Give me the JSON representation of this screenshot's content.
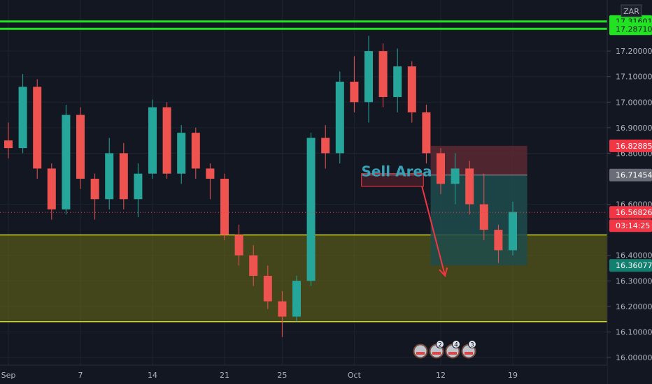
{
  "chart_data": {
    "type": "candlestick",
    "title": "",
    "symbol_currency": "ZAR",
    "ylim": [
      15.97,
      17.4
    ],
    "y_ticks": [
      {
        "value": 17.2,
        "label": "17.20000"
      },
      {
        "value": 17.1,
        "label": "17.10000"
      },
      {
        "value": 17.0,
        "label": "17.00000"
      },
      {
        "value": 16.9,
        "label": "16.90000"
      },
      {
        "value": 16.8,
        "label": "16.80000"
      },
      {
        "value": 16.6,
        "label": "16.60000"
      },
      {
        "value": 16.4,
        "label": "16.40000"
      },
      {
        "value": 16.3,
        "label": "16.30000"
      },
      {
        "value": 16.2,
        "label": "16.20000"
      },
      {
        "value": 16.1,
        "label": "16.10000"
      },
      {
        "value": 16.0,
        "label": "16.00000"
      }
    ],
    "x_ticks": [
      {
        "index": 0,
        "label": "Sep"
      },
      {
        "index": 5,
        "label": "7"
      },
      {
        "index": 10,
        "label": "14"
      },
      {
        "index": 15,
        "label": "21"
      },
      {
        "index": 19,
        "label": "25"
      },
      {
        "index": 24,
        "label": "Oct"
      },
      {
        "index": 30,
        "label": "12"
      },
      {
        "index": 35,
        "label": "19"
      }
    ],
    "price_tags": [
      {
        "value": 17.316,
        "label": "17.31601",
        "color": "#22e322",
        "text_color": "#131722"
      },
      {
        "value": 17.2871,
        "label": "17.28710",
        "color": "#22e322",
        "text_color": "#131722"
      },
      {
        "value": 16.82885,
        "label": "16.82885",
        "color": "#f23645",
        "text_color": "#ffffff"
      },
      {
        "value": 16.71454,
        "label": "16.71454",
        "color": "#6a6d78",
        "text_color": "#ffffff"
      },
      {
        "value": 16.56826,
        "label": "16.56826",
        "color": "#f23645",
        "text_color": "#ffffff"
      },
      {
        "value": 16.36077,
        "label": "16.36077",
        "color": "#12806f",
        "text_color": "#ffffff"
      }
    ],
    "countdown": {
      "label": "03:14:25",
      "color": "#f23645"
    },
    "last_price": 16.56826,
    "horizontal_lines": [
      {
        "value": 17.316,
        "color": "#22e322"
      },
      {
        "value": 17.2871,
        "color": "#22e322"
      }
    ],
    "demand_zone": {
      "top": 16.48,
      "bottom": 16.14,
      "fill": "#6b6b14",
      "border": "#ffff33"
    },
    "sell_area": {
      "label": "Sell Area",
      "top": 16.72,
      "bottom": 16.67,
      "start_index": 24.5,
      "end_index": 28.8,
      "color": "#f23645",
      "label_color": "#3aa0b5"
    },
    "short_position": {
      "entry": 16.71454,
      "stop": 16.82885,
      "target": 16.36077,
      "start_index": 29.3,
      "end_index": 36.0,
      "stop_fill": "#5a2833",
      "target_fill": "#1e4b4c"
    },
    "arrow": {
      "from_index": 28.7,
      "from_value": 16.67,
      "to_index": 30.3,
      "to_value": 16.32,
      "color": "#f23645"
    },
    "event_markers": [
      "",
      "2",
      "4",
      "3"
    ],
    "candles": [
      {
        "o": 16.85,
        "h": 16.92,
        "l": 16.78,
        "c": 16.82
      },
      {
        "o": 16.82,
        "h": 17.11,
        "l": 16.8,
        "c": 17.06
      },
      {
        "o": 17.06,
        "h": 17.09,
        "l": 16.7,
        "c": 16.74
      },
      {
        "o": 16.74,
        "h": 16.76,
        "l": 16.54,
        "c": 16.58
      },
      {
        "o": 16.58,
        "h": 16.99,
        "l": 16.56,
        "c": 16.95
      },
      {
        "o": 16.95,
        "h": 16.98,
        "l": 16.66,
        "c": 16.7
      },
      {
        "o": 16.7,
        "h": 16.72,
        "l": 16.54,
        "c": 16.62
      },
      {
        "o": 16.62,
        "h": 16.86,
        "l": 16.58,
        "c": 16.8
      },
      {
        "o": 16.8,
        "h": 16.84,
        "l": 16.58,
        "c": 16.62
      },
      {
        "o": 16.62,
        "h": 16.76,
        "l": 16.55,
        "c": 16.72
      },
      {
        "o": 16.72,
        "h": 17.01,
        "l": 16.7,
        "c": 16.98
      },
      {
        "o": 16.98,
        "h": 17.0,
        "l": 16.7,
        "c": 16.72
      },
      {
        "o": 16.72,
        "h": 16.91,
        "l": 16.68,
        "c": 16.88
      },
      {
        "o": 16.88,
        "h": 16.9,
        "l": 16.7,
        "c": 16.74
      },
      {
        "o": 16.74,
        "h": 16.76,
        "l": 16.62,
        "c": 16.7
      },
      {
        "o": 16.7,
        "h": 16.72,
        "l": 16.46,
        "c": 16.48
      },
      {
        "o": 16.48,
        "h": 16.52,
        "l": 16.36,
        "c": 16.4
      },
      {
        "o": 16.4,
        "h": 16.44,
        "l": 16.28,
        "c": 16.32
      },
      {
        "o": 16.32,
        "h": 16.36,
        "l": 16.19,
        "c": 16.22
      },
      {
        "o": 16.22,
        "h": 16.26,
        "l": 16.08,
        "c": 16.16
      },
      {
        "o": 16.16,
        "h": 16.32,
        "l": 16.14,
        "c": 16.3
      },
      {
        "o": 16.3,
        "h": 16.88,
        "l": 16.28,
        "c": 16.86
      },
      {
        "o": 16.86,
        "h": 16.91,
        "l": 16.74,
        "c": 16.8
      },
      {
        "o": 16.8,
        "h": 17.12,
        "l": 16.76,
        "c": 17.08
      },
      {
        "o": 17.08,
        "h": 17.18,
        "l": 16.96,
        "c": 17.0
      },
      {
        "o": 17.0,
        "h": 17.26,
        "l": 16.92,
        "c": 17.2
      },
      {
        "o": 17.2,
        "h": 17.23,
        "l": 16.98,
        "c": 17.02
      },
      {
        "o": 17.02,
        "h": 17.21,
        "l": 16.96,
        "c": 17.14
      },
      {
        "o": 17.14,
        "h": 17.16,
        "l": 16.92,
        "c": 16.96
      },
      {
        "o": 16.96,
        "h": 16.99,
        "l": 16.76,
        "c": 16.8
      },
      {
        "o": 16.8,
        "h": 16.82,
        "l": 16.64,
        "c": 16.68
      },
      {
        "o": 16.68,
        "h": 16.8,
        "l": 16.6,
        "c": 16.74
      },
      {
        "o": 16.74,
        "h": 16.77,
        "l": 16.56,
        "c": 16.6
      },
      {
        "o": 16.6,
        "h": 16.72,
        "l": 16.46,
        "c": 16.5
      },
      {
        "o": 16.5,
        "h": 16.52,
        "l": 16.37,
        "c": 16.42
      },
      {
        "o": 16.42,
        "h": 16.61,
        "l": 16.4,
        "c": 16.57
      }
    ]
  }
}
